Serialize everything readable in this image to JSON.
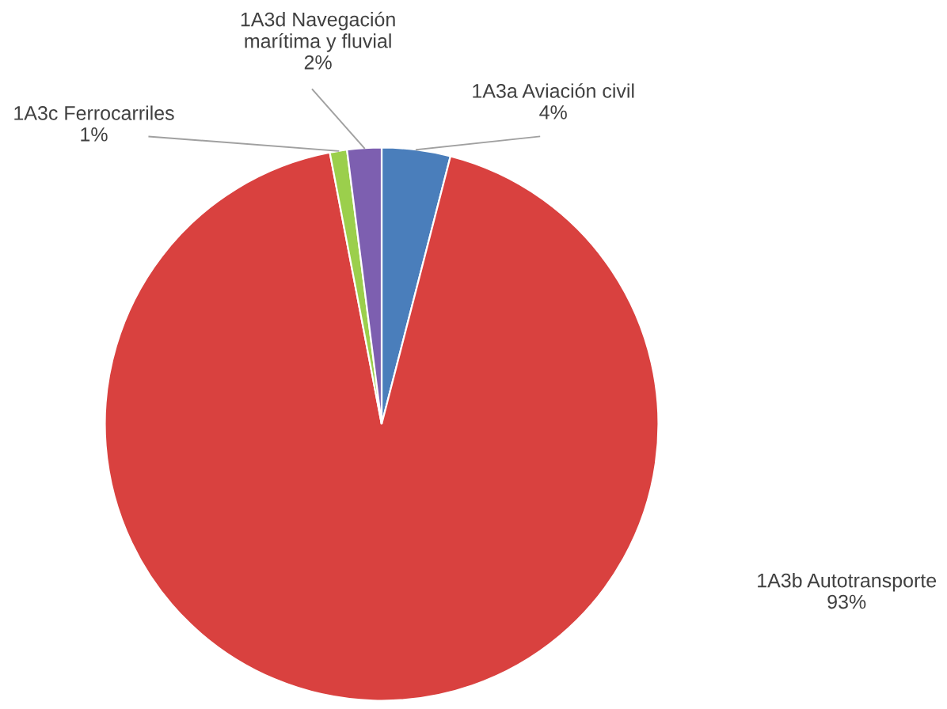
{
  "chart_data": {
    "type": "pie",
    "categories": [
      "1A3a Aviación civil",
      "1A3b Autotransporte",
      "1A3c Ferrocarriles",
      "1A3d Navegación marítima y fluvial"
    ],
    "values": [
      4,
      93,
      1,
      2
    ],
    "value_labels": [
      "4%",
      "93%",
      "1%",
      "2%"
    ],
    "colors": [
      "#4a7ebb",
      "#d9413f",
      "#9bcf4c",
      "#7d5fb0"
    ],
    "legend": false
  }
}
